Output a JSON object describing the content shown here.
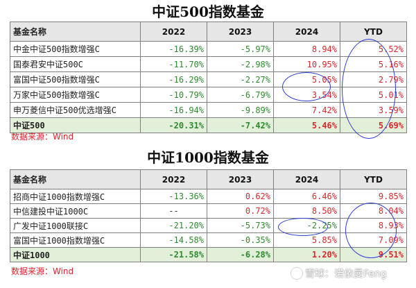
{
  "table1": {
    "title": "中证500指数基金",
    "headers": [
      "基金名称",
      "2022",
      "2023",
      "2024",
      "YTD"
    ],
    "rows": [
      {
        "name": "中金中证500指数增强C",
        "v": [
          "-16.39%",
          "-5.97%",
          "8.94%",
          "5.52%"
        ]
      },
      {
        "name": "国泰君安中证500C",
        "v": [
          "-11.70%",
          "-2.98%",
          "10.95%",
          "5.16%"
        ]
      },
      {
        "name": "富国中证500指数增强C",
        "v": [
          "-16.29%",
          "-2.27%",
          "5.05%",
          "2.79%"
        ]
      },
      {
        "name": "万家中证500指数增强C",
        "v": [
          "-10.79%",
          "-6.79%",
          "3.54%",
          "5.01%"
        ]
      },
      {
        "name": "申万菱信中证500优选增强C",
        "v": [
          "-16.94%",
          "-9.89%",
          "7.42%",
          "3.59%"
        ]
      }
    ],
    "total": {
      "name": "中证500",
      "v": [
        "-20.31%",
        "-7.42%",
        "5.46%",
        "5.69%"
      ]
    },
    "source": "数据来源：Wind"
  },
  "table2": {
    "title": "中证1000指数基金",
    "headers": [
      "基金名称",
      "2022",
      "2023",
      "2024",
      "YTD"
    ],
    "rows": [
      {
        "name": "招商中证1000指数增强C",
        "v": [
          "-13.36%",
          "0.62%",
          "6.46%",
          "9.85%"
        ]
      },
      {
        "name": "中信建投中证1000C",
        "v": [
          "--",
          "0.72%",
          "8.50%",
          "8.04%"
        ]
      },
      {
        "name": "广发中证1000联接C",
        "v": [
          "-21.20%",
          "-5.73%",
          "-2.25%",
          "8.93%"
        ]
      },
      {
        "name": "富国中证1000指数增强C",
        "v": [
          "-14.58%",
          "-0.35%",
          "5.85%",
          "7.09%"
        ]
      }
    ],
    "total": {
      "name": "中证1000",
      "v": [
        "-21.58%",
        "-6.28%",
        "1.20%",
        "9.51%"
      ]
    },
    "source": "数据来源：Wind"
  },
  "watermark": {
    "text": "雪球：诺依曼Feng",
    "icon": "xueqiu-logo-icon"
  },
  "colors": {
    "negative": "#2e8b2e",
    "positive": "#e0242b",
    "header_bg": "#e7e6e6",
    "total_bg": "#e2efd9",
    "annotation": "#2b3bd6"
  }
}
